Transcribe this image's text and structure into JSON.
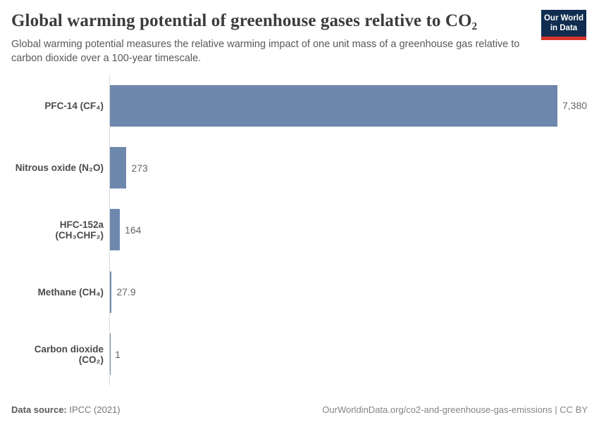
{
  "header": {
    "title": "Global warming potential of greenhouse gases relative to CO₂",
    "subtitle": "Global warming potential measures the relative warming impact of one unit mass of a greenhouse gas relative to carbon dioxide over a 100-year timescale."
  },
  "logo": {
    "line1": "Our World",
    "line2": "in Data",
    "bg_color": "#102d50",
    "accent_color": "#d8352a"
  },
  "chart_data": {
    "type": "bar",
    "orientation": "horizontal",
    "title": "Global warming potential of greenhouse gases relative to CO₂",
    "categories": [
      "PFC-14 (CF₄)",
      "Nitrous oxide (N₂O)",
      "HFC-152a (CH₃CHF₂)",
      "Methane (CH₄)",
      "Carbon dioxide (CO₂)"
    ],
    "values": [
      7380,
      273,
      164,
      27.9,
      1
    ],
    "value_labels": [
      "7,380",
      "273",
      "164",
      "27.9",
      "1"
    ],
    "xlim": [
      0,
      7380
    ],
    "bar_color": "#6e88ad",
    "axis_line_color": "#dcdcdc",
    "grid": false,
    "legend": "none"
  },
  "footer": {
    "source_label": "Data source:",
    "source_value": "IPCC (2021)",
    "link_text": "OurWorldinData.org/co2-and-greenhouse-gas-emissions | CC BY"
  }
}
